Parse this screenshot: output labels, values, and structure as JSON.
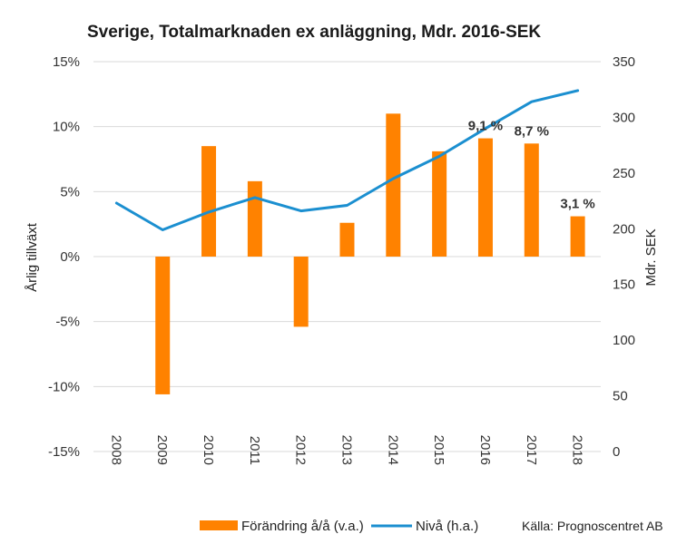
{
  "chart_data": {
    "type": "bar+line",
    "title": "Sverige, Totalmarknaden ex anläggning, Mdr. 2016-SEK",
    "categories": [
      "2008",
      "2009",
      "2010",
      "2011",
      "2012",
      "2013",
      "2014",
      "2015",
      "2016",
      "2017",
      "2018"
    ],
    "series": [
      {
        "name": "Förändring å/å (v.a.)",
        "kind": "bar",
        "axis": "left",
        "color": "#FF8200",
        "values": [
          null,
          -10.6,
          8.5,
          5.8,
          -5.4,
          2.6,
          11.0,
          8.1,
          9.1,
          8.7,
          3.1
        ]
      },
      {
        "name": "Nivå (h.a.)",
        "kind": "line",
        "axis": "right",
        "color": "#1B8FD0",
        "values": [
          223,
          199,
          215,
          228,
          216,
          221,
          245,
          265,
          290,
          314,
          324
        ]
      }
    ],
    "data_labels": [
      {
        "category": "2016",
        "text": "9,1 %"
      },
      {
        "category": "2017",
        "text": "8,7 %"
      },
      {
        "category": "2018",
        "text": "3,1 %"
      }
    ],
    "y_left": {
      "label": "Årlig tillväxt",
      "range": [
        -15,
        15
      ],
      "ticks": [
        -15,
        -10,
        -5,
        0,
        5,
        10,
        15
      ],
      "tick_labels": [
        "-15%",
        "-10%",
        "-5%",
        "0%",
        "5%",
        "10%",
        "15%"
      ]
    },
    "y_right": {
      "label": "Mdr. SEK",
      "range": [
        0,
        350
      ],
      "ticks": [
        0,
        50,
        100,
        150,
        200,
        250,
        300,
        350
      ],
      "tick_labels": [
        "0",
        "50",
        "100",
        "150",
        "200",
        "250",
        "300",
        "350"
      ]
    },
    "grid": "horizontal",
    "legend_position": "bottom",
    "source": "Källa: Prognoscentret AB"
  }
}
